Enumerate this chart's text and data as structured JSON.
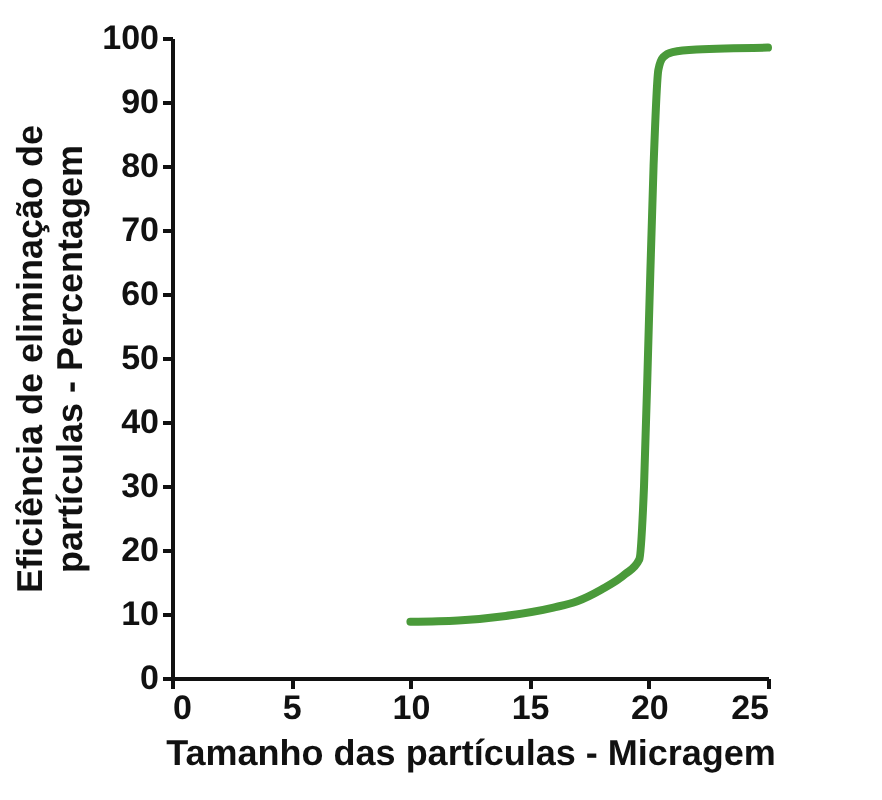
{
  "chart_data": {
    "type": "line",
    "xlabel": "Tamanho das partículas  - Micragem",
    "ylabel": "Eficiência de eliminação de\npartículas  - Percentagem",
    "xlim": [
      0,
      25
    ],
    "xticks": [
      0,
      5,
      10,
      15,
      20,
      25
    ],
    "ylim": [
      0,
      100
    ],
    "yticks": [
      0,
      10,
      20,
      30,
      40,
      50,
      60,
      70,
      80,
      90,
      100
    ],
    "grid": false,
    "marker": "none",
    "line_style": "solid",
    "series": [
      {
        "color": "#4a9a3a",
        "x": [
          10,
          12,
          14,
          16,
          17,
          18,
          19,
          19.6,
          19.8,
          20,
          20.2,
          20.4,
          20.6,
          21,
          22,
          25
        ],
        "values": [
          8.8,
          9,
          9.7,
          11,
          12,
          13.8,
          16.2,
          18.5,
          30,
          55,
          80,
          95,
          97,
          97.8,
          98.2,
          98.5
        ]
      }
    ]
  }
}
